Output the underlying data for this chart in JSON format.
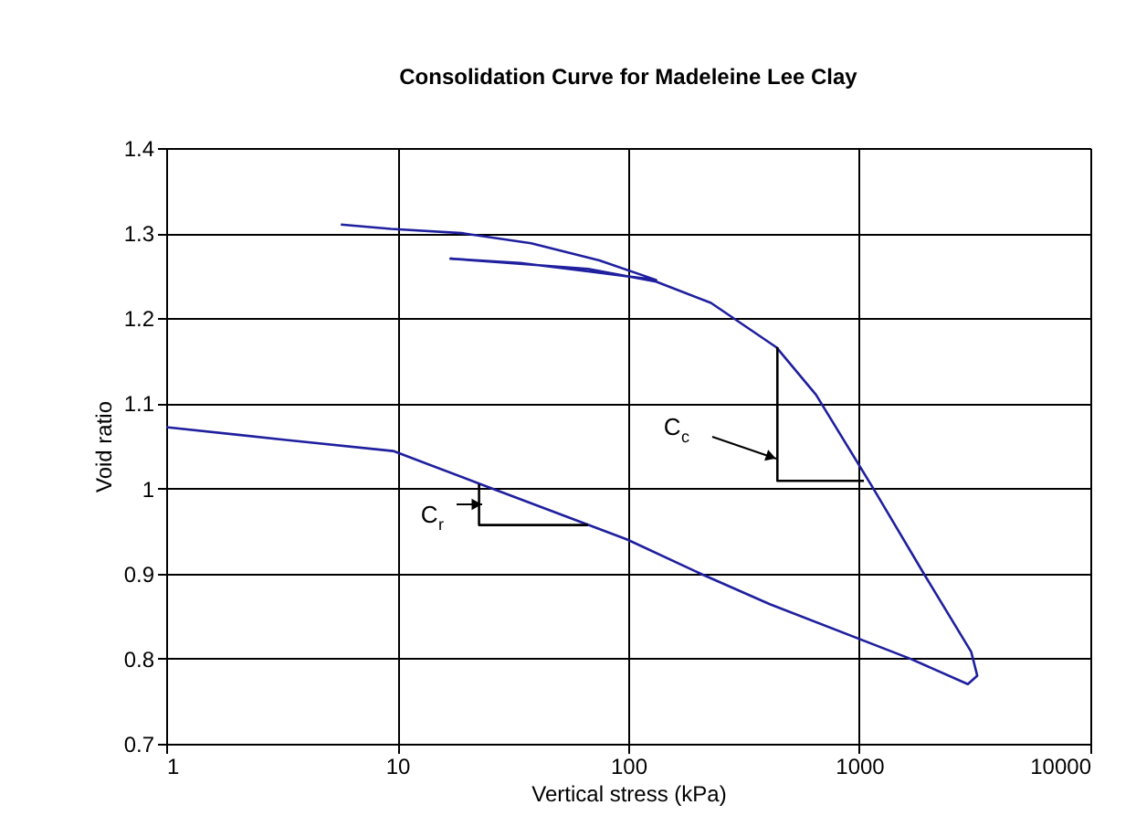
{
  "chart_data": {
    "type": "line",
    "title": "Consolidation Curve for Madeleine Lee Clay",
    "xlabel": "Vertical stress (kPa)",
    "ylabel": "Void ratio",
    "log": "x",
    "grid": true,
    "legend": false,
    "xlim": [
      1,
      10000
    ],
    "xticks": [
      1,
      10,
      100,
      1000,
      10000
    ],
    "ylim": [
      0.7,
      1.4
    ],
    "yticks": [
      0.7,
      0.8,
      0.9,
      1,
      1.1,
      1.2,
      1.3,
      1.4
    ],
    "series": [
      {
        "color": "#1f1f9f",
        "x": [
          5.7,
          9.4,
          19,
          38,
          75,
          132,
          67,
          34,
          17,
          34,
          67,
          132,
          228,
          437,
          650,
          1150,
          1930,
          3050,
          3240,
          2950,
          1660,
          410,
          205,
          99,
          23,
          9.6,
          3.3,
          1
        ],
        "values": [
          1.31,
          1.305,
          1.3,
          1.288,
          1.268,
          1.245,
          1.255,
          1.265,
          1.27,
          1.264,
          1.258,
          1.243,
          1.218,
          1.166,
          1.11,
          1.0,
          0.897,
          0.808,
          0.78,
          0.77,
          0.8,
          0.864,
          0.9,
          0.94,
          1.005,
          1.044,
          1.057,
          1.072
        ]
      },
      {
        "color": "#000000",
        "x": [
          442,
          442,
          1047
        ],
        "values": [
          1.166,
          1.009,
          1.009
        ]
      },
      {
        "color": "#000000",
        "x": [
          22.6,
          22.6,
          67
        ],
        "values": [
          1.005,
          0.957,
          0.957
        ]
      }
    ],
    "annotations": [
      "C$_{c}$",
      "C$_{r}$"
    ]
  }
}
